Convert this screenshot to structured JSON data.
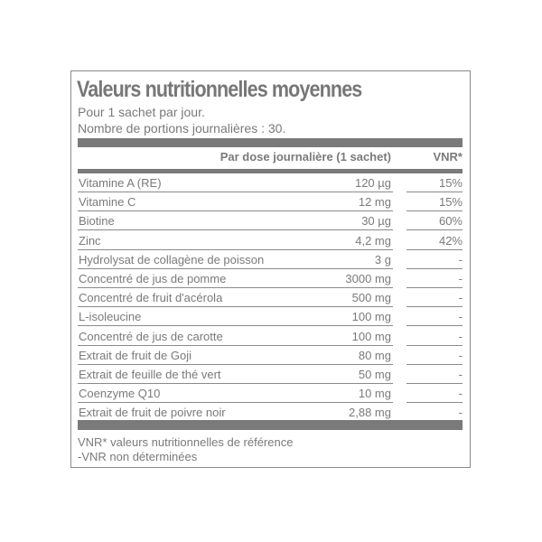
{
  "title": "Valeurs nutritionnelles moyennes",
  "subtitle_1": "Pour 1 sachet par jour.",
  "subtitle_2": "Nombre de portions journalières : 30.",
  "header": {
    "dose": "Par dose journalière (1 sachet)",
    "vnr": "VNR*"
  },
  "rows": [
    {
      "name": "Vitamine A (RE)",
      "amount": "120 µg",
      "vnr": "15%"
    },
    {
      "name": "Vitamine C",
      "amount": "12 mg",
      "vnr": "15%"
    },
    {
      "name": "Biotine",
      "amount": "30 µg",
      "vnr": "60%"
    },
    {
      "name": "Zinc",
      "amount": "4,2 mg",
      "vnr": "42%"
    },
    {
      "name": "Hydrolysat de collagène de poisson",
      "amount": "3 g",
      "vnr": "-"
    },
    {
      "name": "Concentré de jus de pomme",
      "amount": "3000 mg",
      "vnr": "-"
    },
    {
      "name": "Concentré de fruit d'acérola",
      "amount": "500 mg",
      "vnr": "-"
    },
    {
      "name": "L-isoleucine",
      "amount": "100 mg",
      "vnr": "-"
    },
    {
      "name": "Concentré de jus de carotte",
      "amount": "100 mg",
      "vnr": "-"
    },
    {
      "name": "Extrait de fruit de Goji",
      "amount": "80 mg",
      "vnr": "-"
    },
    {
      "name": "Extrait de feuille de thé vert",
      "amount": "50 mg",
      "vnr": "-"
    },
    {
      "name": "Coenzyme Q10",
      "amount": "10 mg",
      "vnr": "-"
    },
    {
      "name": "Extrait de fruit de poivre noir",
      "amount": "2,88 mg",
      "vnr": "-"
    }
  ],
  "footer_1": "VNR* valeurs nutritionnelles de référence",
  "footer_2": "-VNR non déterminées"
}
